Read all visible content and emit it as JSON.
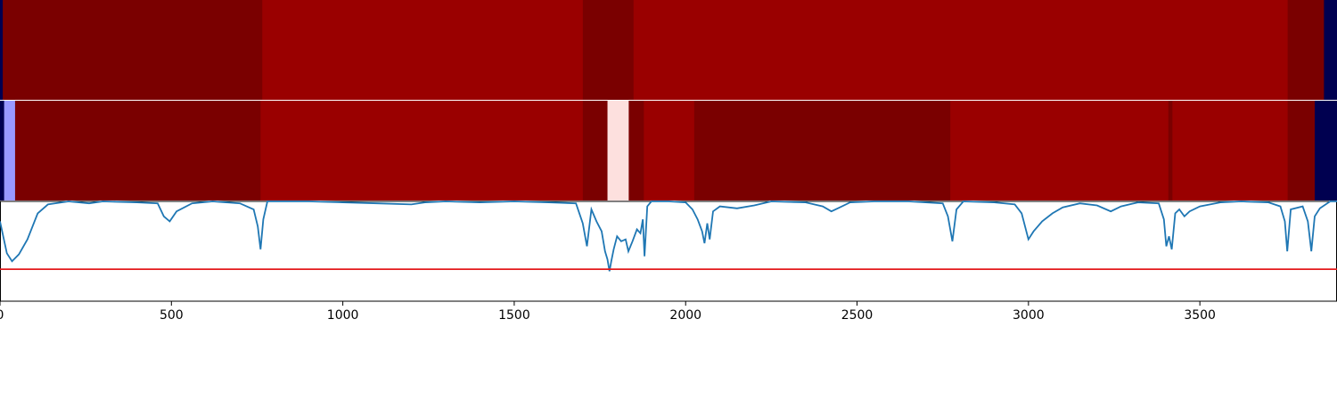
{
  "chart_data": {
    "type": "heatmap",
    "x_range": [
      0,
      3900
    ],
    "x_ticks": [
      0,
      500,
      1000,
      1500,
      2000,
      2500,
      3000,
      3500
    ],
    "x_tick_labels": [
      "0",
      "500",
      "1000",
      "1500",
      "2000",
      "2500",
      "3000",
      "3500"
    ],
    "colors": {
      "dark_red": "#7a0000",
      "red": "#9a0000",
      "pale_pink": "#fde0de",
      "light_blue": "#9999ff",
      "navy": "#000050",
      "line": "#1f77b4",
      "threshold": "#e31a1c"
    },
    "bands": [
      {
        "segments": [
          {
            "x0": 0,
            "x1": 8,
            "color": "navy"
          },
          {
            "x0": 8,
            "x1": 765,
            "color": "dark_red"
          },
          {
            "x0": 765,
            "x1": 1700,
            "color": "red"
          },
          {
            "x0": 1700,
            "x1": 1848,
            "color": "dark_red"
          },
          {
            "x0": 1848,
            "x1": 3756,
            "color": "red"
          },
          {
            "x0": 3756,
            "x1": 3862,
            "color": "dark_red"
          },
          {
            "x0": 3862,
            "x1": 3900,
            "color": "navy"
          }
        ]
      },
      {
        "segments": [
          {
            "x0": 0,
            "x1": 12,
            "color": "navy"
          },
          {
            "x0": 12,
            "x1": 44,
            "color": "light_blue"
          },
          {
            "x0": 44,
            "x1": 760,
            "color": "dark_red"
          },
          {
            "x0": 760,
            "x1": 1700,
            "color": "red"
          },
          {
            "x0": 1700,
            "x1": 1772,
            "color": "dark_red"
          },
          {
            "x0": 1772,
            "x1": 1834,
            "color": "pale_pink"
          },
          {
            "x0": 1834,
            "x1": 1878,
            "color": "dark_red"
          },
          {
            "x0": 1878,
            "x1": 2025,
            "color": "red"
          },
          {
            "x0": 2025,
            "x1": 2772,
            "color": "dark_red"
          },
          {
            "x0": 2772,
            "x1": 3408,
            "color": "red"
          },
          {
            "x0": 3408,
            "x1": 3420,
            "color": "dark_red"
          },
          {
            "x0": 3420,
            "x1": 3756,
            "color": "red"
          },
          {
            "x0": 3756,
            "x1": 3835,
            "color": "dark_red"
          },
          {
            "x0": 3835,
            "x1": 3900,
            "color": "navy"
          }
        ]
      }
    ],
    "line_panel": {
      "y_range": [
        0,
        1
      ],
      "threshold": 0.32,
      "points": [
        [
          0,
          0.8
        ],
        [
          20,
          0.48
        ],
        [
          35,
          0.4
        ],
        [
          55,
          0.47
        ],
        [
          80,
          0.62
        ],
        [
          110,
          0.88
        ],
        [
          140,
          0.97
        ],
        [
          200,
          1.0
        ],
        [
          260,
          0.98
        ],
        [
          300,
          1.0
        ],
        [
          400,
          0.99
        ],
        [
          460,
          0.98
        ],
        [
          478,
          0.85
        ],
        [
          495,
          0.8
        ],
        [
          515,
          0.9
        ],
        [
          560,
          0.98
        ],
        [
          620,
          1.0
        ],
        [
          700,
          0.98
        ],
        [
          740,
          0.92
        ],
        [
          752,
          0.75
        ],
        [
          760,
          0.52
        ],
        [
          768,
          0.82
        ],
        [
          780,
          1.0
        ],
        [
          900,
          1.0
        ],
        [
          1000,
          0.99
        ],
        [
          1100,
          0.98
        ],
        [
          1200,
          0.97
        ],
        [
          1240,
          0.99
        ],
        [
          1300,
          1.0
        ],
        [
          1400,
          0.99
        ],
        [
          1500,
          1.0
        ],
        [
          1600,
          0.99
        ],
        [
          1680,
          0.98
        ],
        [
          1690,
          0.88
        ],
        [
          1700,
          0.78
        ],
        [
          1712,
          0.55
        ],
        [
          1725,
          0.92
        ],
        [
          1740,
          0.8
        ],
        [
          1755,
          0.7
        ],
        [
          1765,
          0.5
        ],
        [
          1772,
          0.42
        ],
        [
          1778,
          0.3
        ],
        [
          1783,
          0.4
        ],
        [
          1790,
          0.52
        ],
        [
          1800,
          0.65
        ],
        [
          1812,
          0.6
        ],
        [
          1825,
          0.62
        ],
        [
          1833,
          0.5
        ],
        [
          1845,
          0.6
        ],
        [
          1858,
          0.72
        ],
        [
          1868,
          0.68
        ],
        [
          1875,
          0.82
        ],
        [
          1880,
          0.45
        ],
        [
          1888,
          0.95
        ],
        [
          1900,
          1.0
        ],
        [
          1950,
          1.0
        ],
        [
          2000,
          0.99
        ],
        [
          2020,
          0.92
        ],
        [
          2035,
          0.82
        ],
        [
          2048,
          0.7
        ],
        [
          2055,
          0.58
        ],
        [
          2063,
          0.78
        ],
        [
          2070,
          0.62
        ],
        [
          2080,
          0.9
        ],
        [
          2100,
          0.95
        ],
        [
          2150,
          0.93
        ],
        [
          2200,
          0.96
        ],
        [
          2250,
          1.0
        ],
        [
          2350,
          0.99
        ],
        [
          2400,
          0.95
        ],
        [
          2425,
          0.9
        ],
        [
          2450,
          0.94
        ],
        [
          2480,
          0.99
        ],
        [
          2550,
          1.0
        ],
        [
          2650,
          1.0
        ],
        [
          2750,
          0.98
        ],
        [
          2765,
          0.85
        ],
        [
          2778,
          0.6
        ],
        [
          2790,
          0.92
        ],
        [
          2810,
          1.0
        ],
        [
          2900,
          0.99
        ],
        [
          2960,
          0.97
        ],
        [
          2980,
          0.88
        ],
        [
          3000,
          0.62
        ],
        [
          3015,
          0.7
        ],
        [
          3040,
          0.8
        ],
        [
          3070,
          0.88
        ],
        [
          3100,
          0.94
        ],
        [
          3150,
          0.98
        ],
        [
          3200,
          0.96
        ],
        [
          3240,
          0.9
        ],
        [
          3270,
          0.95
        ],
        [
          3320,
          0.99
        ],
        [
          3380,
          0.98
        ],
        [
          3395,
          0.82
        ],
        [
          3402,
          0.55
        ],
        [
          3410,
          0.65
        ],
        [
          3418,
          0.52
        ],
        [
          3428,
          0.88
        ],
        [
          3440,
          0.92
        ],
        [
          3455,
          0.85
        ],
        [
          3470,
          0.9
        ],
        [
          3500,
          0.95
        ],
        [
          3560,
          0.99
        ],
        [
          3620,
          1.0
        ],
        [
          3700,
          0.99
        ],
        [
          3735,
          0.95
        ],
        [
          3748,
          0.8
        ],
        [
          3755,
          0.5
        ],
        [
          3765,
          0.92
        ],
        [
          3800,
          0.95
        ],
        [
          3815,
          0.8
        ],
        [
          3825,
          0.5
        ],
        [
          3835,
          0.85
        ],
        [
          3850,
          0.93
        ],
        [
          3880,
          1.0
        ],
        [
          3900,
          1.0
        ]
      ]
    }
  }
}
